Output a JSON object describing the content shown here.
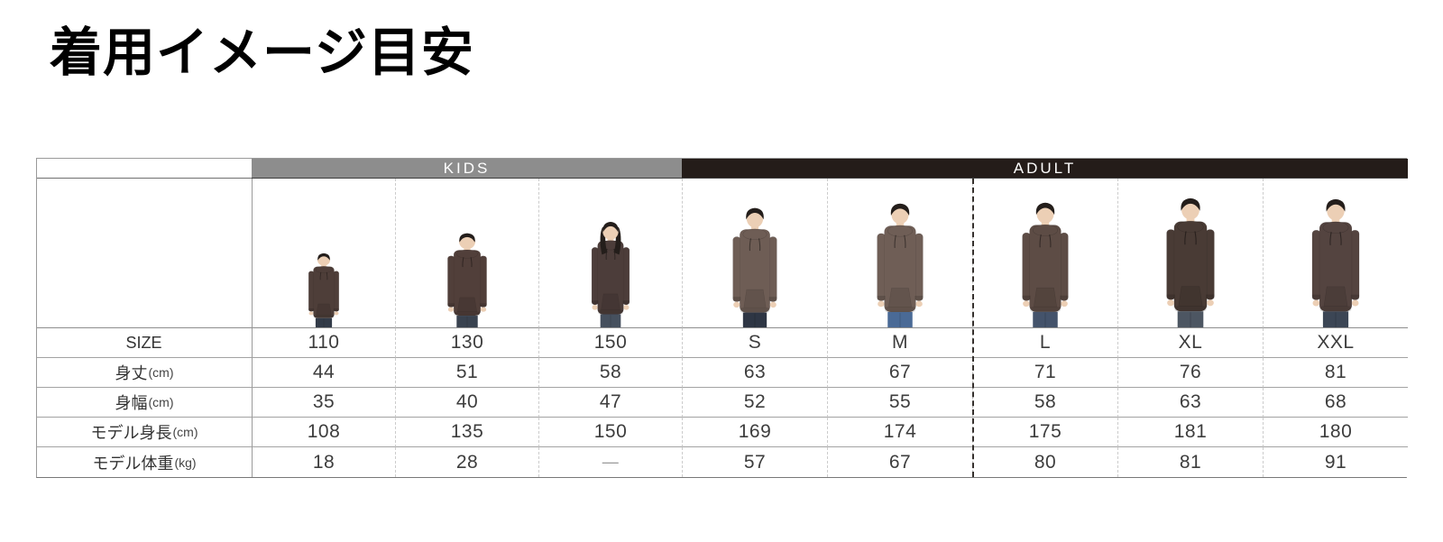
{
  "title": "着用イメージ目安",
  "header": {
    "kids_label": "KIDS",
    "adult_label": "ADULT",
    "kids_bar_color": "#8d8d8d",
    "adult_bar_color": "#241c19"
  },
  "table": {
    "rows": [
      {
        "label": "SIZE",
        "unit": "",
        "values": [
          "110",
          "130",
          "150",
          "S",
          "M",
          "L",
          "XL",
          "XXL"
        ]
      },
      {
        "label": "身丈",
        "unit": "(cm)",
        "values": [
          "44",
          "51",
          "58",
          "63",
          "67",
          "71",
          "76",
          "81"
        ]
      },
      {
        "label": "身幅",
        "unit": "(cm)",
        "values": [
          "35",
          "40",
          "47",
          "52",
          "55",
          "58",
          "63",
          "68"
        ]
      },
      {
        "label": "モデル身長",
        "unit": "(cm)",
        "values": [
          "108",
          "135",
          "150",
          "169",
          "174",
          "175",
          "181",
          "180"
        ]
      },
      {
        "label": "モデル体重",
        "unit": "(kg)",
        "values": [
          "18",
          "28",
          "—",
          "57",
          "67",
          "80",
          "81",
          "91"
        ]
      }
    ],
    "models": [
      {
        "size": "110",
        "type": "kid",
        "hoodie": "#4e3e39",
        "jeans": "#323b48"
      },
      {
        "size": "130",
        "type": "kid",
        "hoodie": "#513f3a",
        "jeans": "#39424f"
      },
      {
        "size": "150",
        "type": "girl",
        "hoodie": "#4c3d3a",
        "jeans": "#46505e"
      },
      {
        "size": "S",
        "type": "adult",
        "hoodie": "#6e5d55",
        "jeans": "#2e3644"
      },
      {
        "size": "M",
        "type": "adult",
        "hoodie": "#6f5e56",
        "jeans": "#4a6a96"
      },
      {
        "size": "L",
        "type": "adult",
        "hoodie": "#5d4c45",
        "jeans": "#44536b"
      },
      {
        "size": "XL",
        "type": "adult",
        "hoodie": "#493b35",
        "jeans": "#4d5662"
      },
      {
        "size": "XXL",
        "type": "adult",
        "hoodie": "#544440",
        "jeans": "#3c4655"
      }
    ],
    "skin_color": "#eccfb5",
    "hair_color": "#241e1b"
  },
  "chart_data": {
    "type": "table",
    "title": "着用イメージ目安",
    "column_groups": [
      {
        "label": "KIDS",
        "columns": [
          "110",
          "130",
          "150"
        ]
      },
      {
        "label": "ADULT",
        "columns": [
          "S",
          "M",
          "L",
          "XL",
          "XXL"
        ]
      }
    ],
    "categories": [
      "110",
      "130",
      "150",
      "S",
      "M",
      "L",
      "XL",
      "XXL"
    ],
    "series": [
      {
        "name": "身丈(cm)",
        "values": [
          44,
          51,
          58,
          63,
          67,
          71,
          76,
          81
        ]
      },
      {
        "name": "身幅(cm)",
        "values": [
          35,
          40,
          47,
          52,
          55,
          58,
          63,
          68
        ]
      },
      {
        "name": "モデル身長(cm)",
        "values": [
          108,
          135,
          150,
          169,
          174,
          175,
          181,
          180
        ]
      },
      {
        "name": "モデル体重(kg)",
        "values": [
          18,
          28,
          null,
          57,
          67,
          80,
          81,
          91
        ]
      }
    ],
    "notes": "モデル体重 for size 150 is shown as a dash (no value)"
  }
}
